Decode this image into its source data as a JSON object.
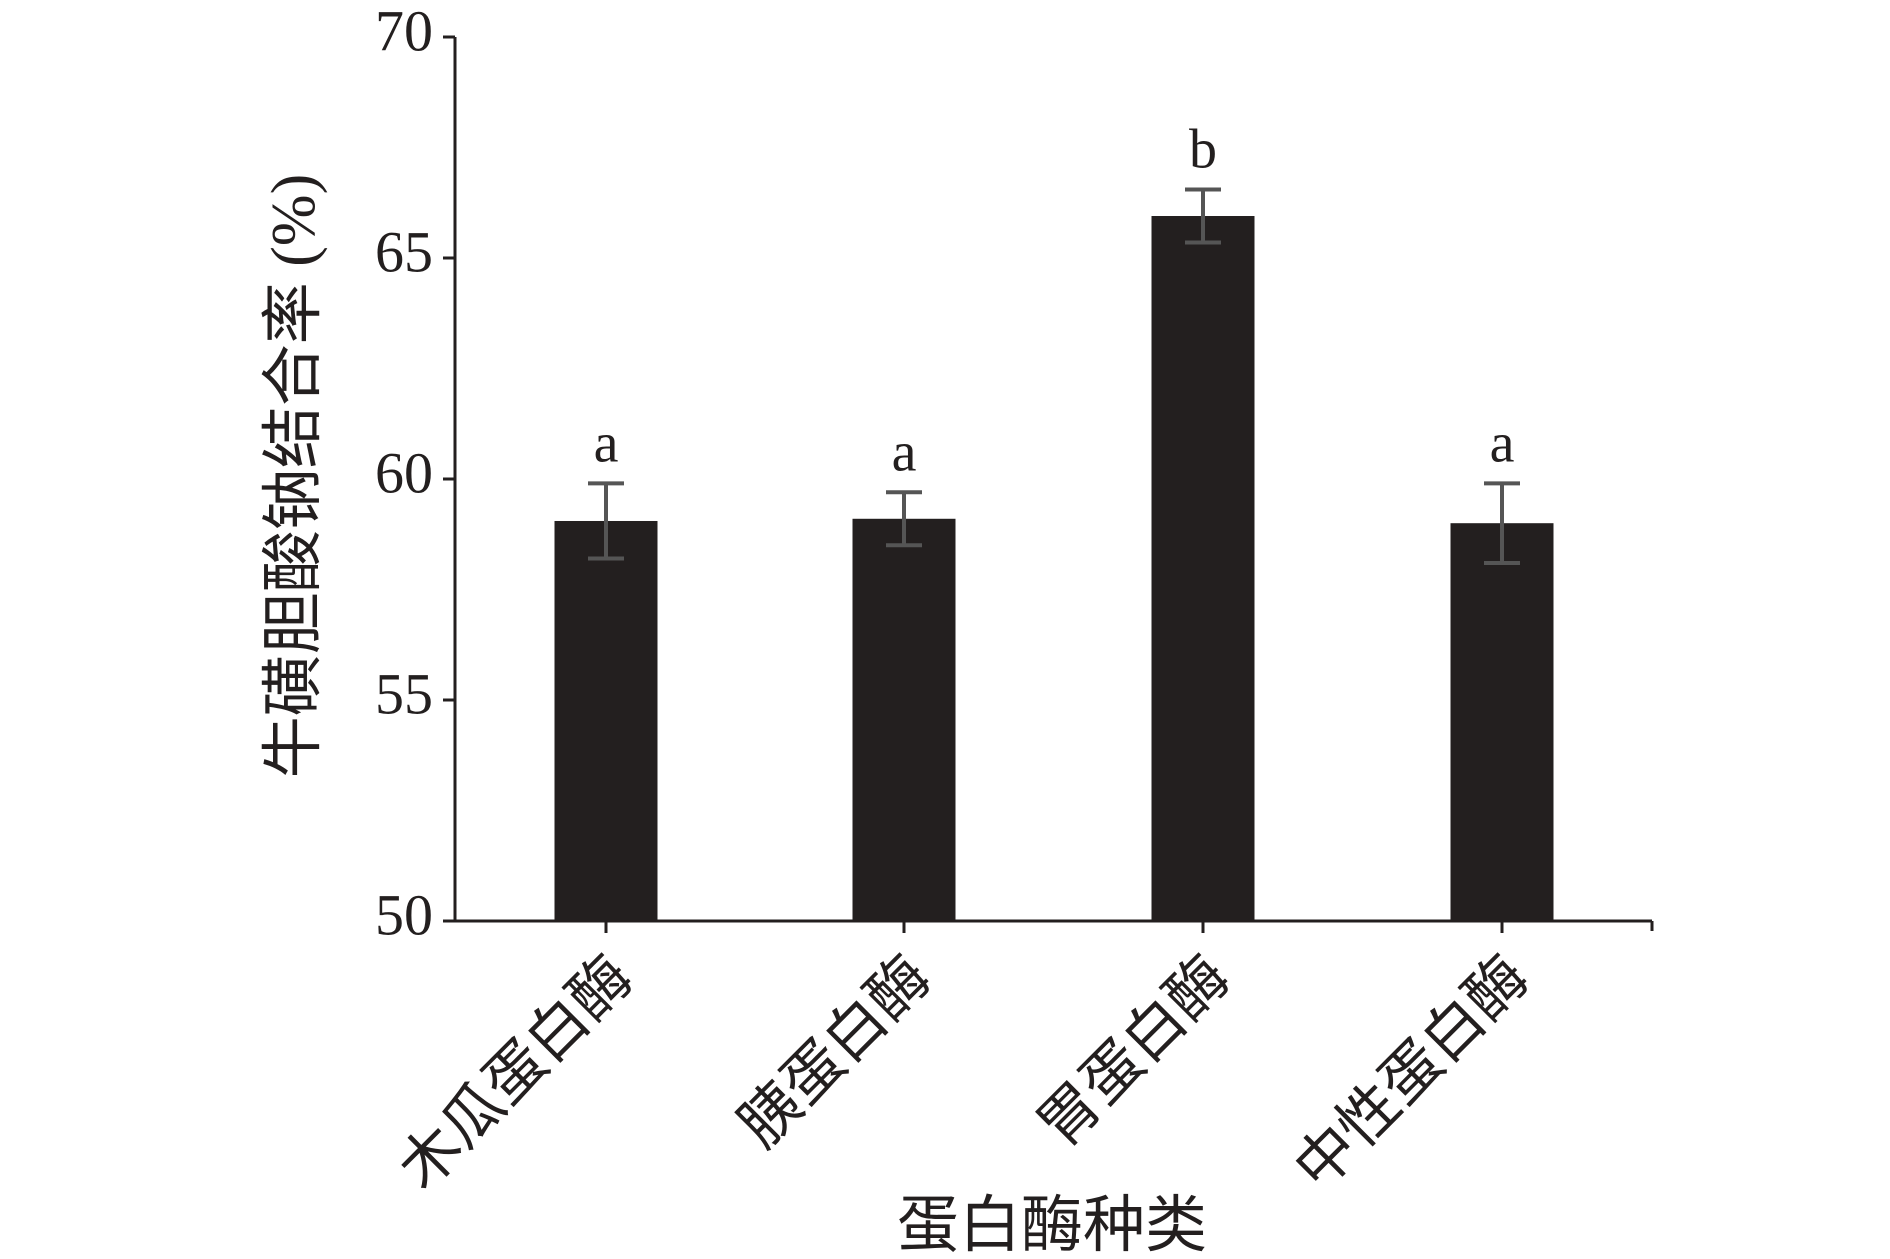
{
  "chart_data": {
    "type": "bar",
    "x_label": "蛋白酶种类",
    "y_label": "牛磺胆酸钠结合率 (%)",
    "categories": [
      "木瓜蛋白酶",
      "胰蛋白酶",
      "胃蛋白酶",
      "中性蛋白酶"
    ],
    "values": [
      59.05,
      59.1,
      65.95,
      59.0
    ],
    "errors": [
      0.85,
      0.6,
      0.6,
      0.9
    ],
    "annotations": [
      "a",
      "a",
      "b",
      "a"
    ],
    "color": "#231f1f",
    "error_color": "#555555",
    "ylim": [
      50,
      70
    ],
    "yticks": [
      50,
      55,
      60,
      65,
      70
    ],
    "grid": false
  }
}
